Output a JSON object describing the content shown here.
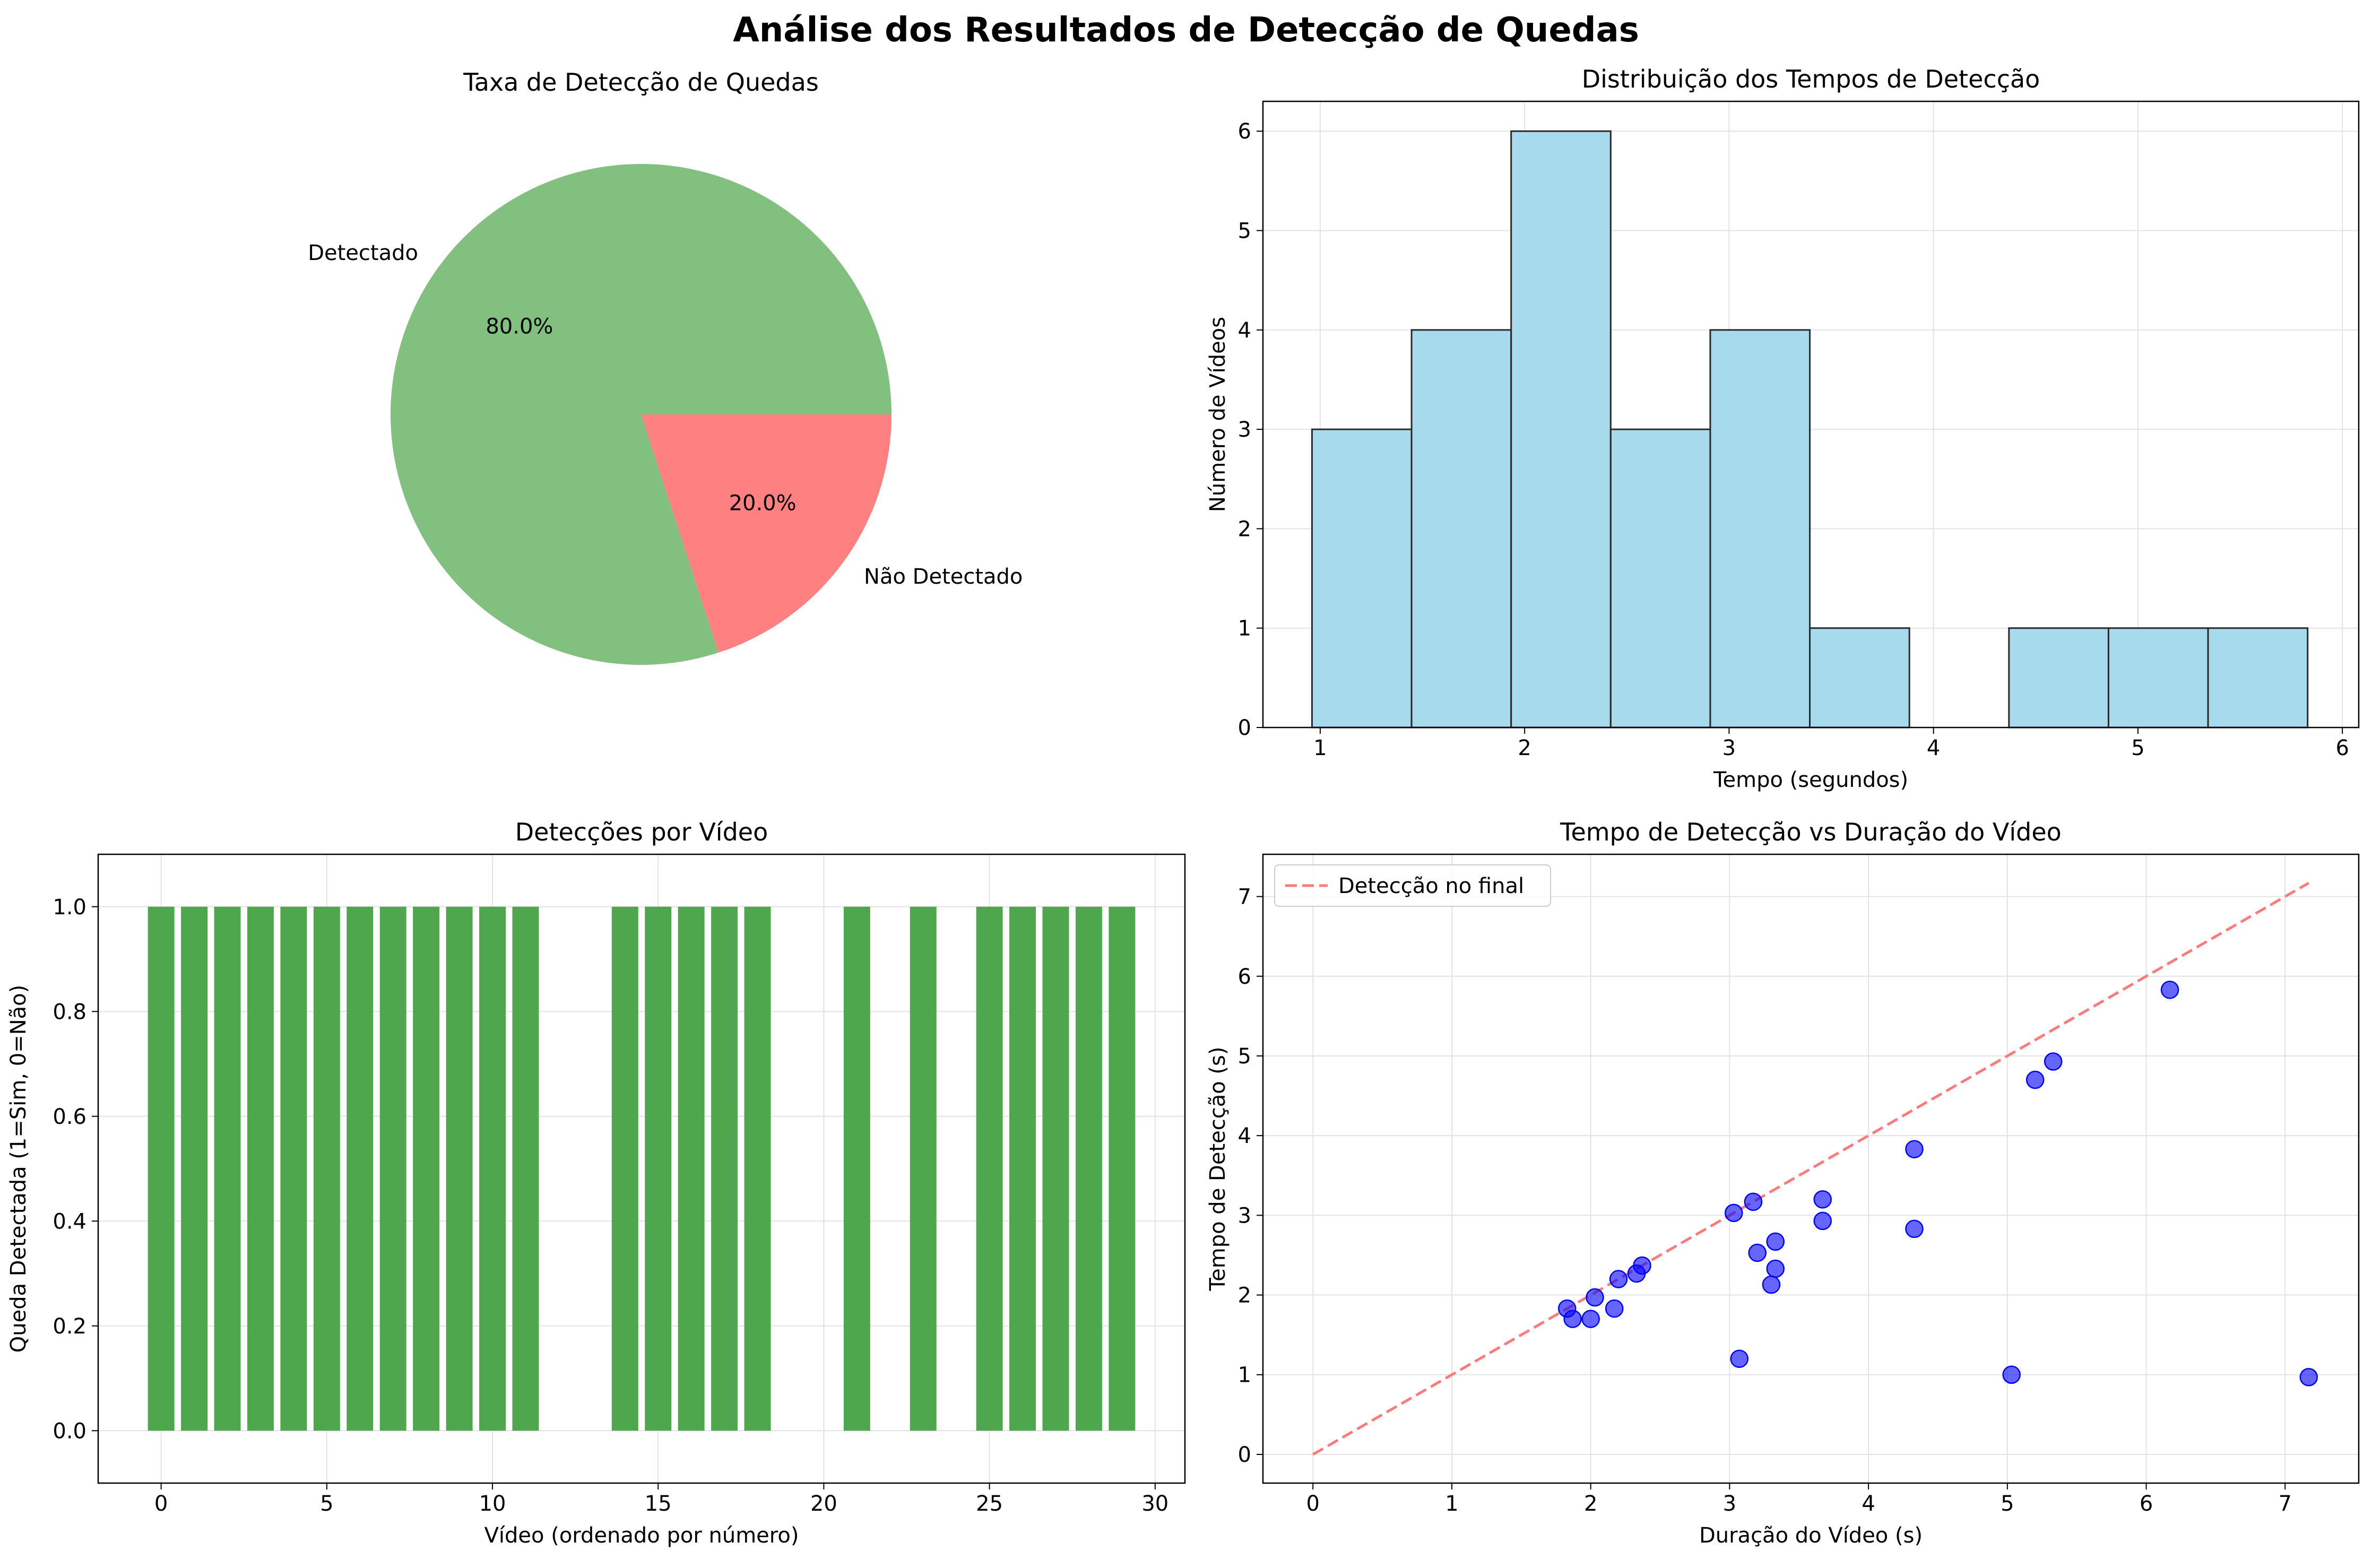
{
  "figure": {
    "title": "Análise dos Resultados de Detecção de Quedas"
  },
  "chart_data": [
    {
      "type": "pie",
      "title": "Taxa de Detecção de Quedas",
      "labels": [
        "Detectado",
        "Não Detectado"
      ],
      "values": [
        80.0,
        20.0
      ],
      "autopct": [
        "80.0%",
        "20.0%"
      ],
      "colors": [
        "#81c07f",
        "#ff8080"
      ]
    },
    {
      "type": "bar",
      "subtype": "histogram",
      "title": "Distribuição dos Tempos de Detecção",
      "xlabel": "Tempo (segundos)",
      "ylabel": "Número de Vídeos",
      "bin_edges": [
        0.96,
        1.447,
        1.934,
        2.421,
        2.908,
        3.395,
        3.882,
        4.369,
        4.856,
        5.343,
        5.83
      ],
      "counts": [
        3,
        4,
        6,
        3,
        4,
        1,
        0,
        1,
        1,
        1
      ],
      "xlim": [
        0.72,
        6.08
      ],
      "ylim": [
        0,
        6.3
      ],
      "xticks": [
        1,
        2,
        3,
        4,
        5,
        6
      ],
      "yticks": [
        0,
        1,
        2,
        3,
        4,
        5,
        6
      ],
      "color": "#a8daed",
      "grid": true
    },
    {
      "type": "bar",
      "title": "Detecções por Vídeo",
      "xlabel": "Vídeo (ordenado por número)",
      "ylabel": "Queda Detectada (1=Sim, 0=Não)",
      "x": [
        0,
        1,
        2,
        3,
        4,
        5,
        6,
        7,
        8,
        9,
        10,
        11,
        12,
        13,
        14,
        15,
        16,
        17,
        18,
        19,
        20,
        21,
        22,
        23,
        24,
        25,
        26,
        27,
        28,
        29
      ],
      "values": [
        1,
        1,
        1,
        1,
        1,
        1,
        1,
        1,
        1,
        1,
        1,
        1,
        0,
        0,
        1,
        1,
        1,
        1,
        1,
        0,
        0,
        1,
        0,
        1,
        0,
        1,
        1,
        1,
        1,
        1
      ],
      "xlim": [
        -1.9,
        30.9
      ],
      "ylim": [
        -0.1,
        1.1
      ],
      "xticks": [
        "0",
        "5",
        "10",
        "15",
        "20",
        "25",
        "30"
      ],
      "yticks": [
        "0.0",
        "0.2",
        "0.4",
        "0.6",
        "0.8",
        "1.0"
      ],
      "color": "#4ea74c",
      "grid": true
    },
    {
      "type": "scatter",
      "title": "Tempo de Detecção vs Duração do Vídeo",
      "xlabel": "Duração do Vídeo (s)",
      "ylabel": "Tempo de Detecção (s)",
      "points": [
        [
          1.83,
          1.83
        ],
        [
          1.87,
          1.7
        ],
        [
          2.0,
          1.7
        ],
        [
          2.03,
          1.97
        ],
        [
          2.17,
          1.83
        ],
        [
          2.2,
          2.2
        ],
        [
          2.33,
          2.27
        ],
        [
          2.37,
          2.37
        ],
        [
          3.03,
          3.03
        ],
        [
          3.07,
          1.2
        ],
        [
          3.17,
          3.17
        ],
        [
          3.2,
          2.53
        ],
        [
          3.3,
          2.13
        ],
        [
          3.33,
          2.33
        ],
        [
          3.33,
          2.67
        ],
        [
          3.67,
          2.93
        ],
        [
          3.67,
          3.2
        ],
        [
          4.33,
          3.83
        ],
        [
          4.33,
          2.83
        ],
        [
          5.03,
          1.0
        ],
        [
          5.2,
          4.7
        ],
        [
          5.33,
          4.93
        ],
        [
          6.17,
          5.83
        ],
        [
          7.17,
          0.97
        ]
      ],
      "reference_line": {
        "label": "Detecção no final",
        "x": [
          0,
          7.17
        ],
        "y": [
          0,
          7.17
        ],
        "color": "#ff7b7b"
      },
      "marker_color": "#0000ff",
      "xlim": [
        -0.36,
        7.53
      ],
      "ylim": [
        -0.36,
        7.53
      ],
      "xticks": [
        0,
        1,
        2,
        3,
        4,
        5,
        6,
        7
      ],
      "yticks": [
        0,
        1,
        2,
        3,
        4,
        5,
        6,
        7
      ],
      "legend": "upper-left",
      "grid": true
    }
  ]
}
